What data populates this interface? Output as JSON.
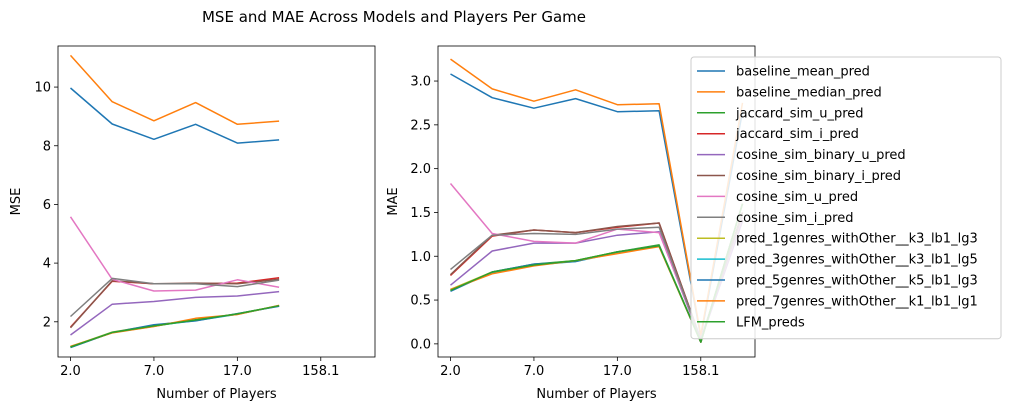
{
  "chart_data": {
    "title": "MSE and MAE Across Models and Players Per Game",
    "type": "line",
    "series_meta": [
      {
        "name": "baseline_mean_pred",
        "color": "#1f77b4"
      },
      {
        "name": "baseline_median_pred",
        "color": "#ff7f0e"
      },
      {
        "name": "jaccard_sim_u_pred",
        "color": "#2ca02c"
      },
      {
        "name": "jaccard_sim_i_pred",
        "color": "#d62728"
      },
      {
        "name": "cosine_sim_binary_u_pred",
        "color": "#9467bd"
      },
      {
        "name": "cosine_sim_binary_i_pred",
        "color": "#8c564b"
      },
      {
        "name": "cosine_sim_u_pred",
        "color": "#e377c2"
      },
      {
        "name": "cosine_sim_i_pred",
        "color": "#7f7f7f"
      },
      {
        "name": "pred_1genres_withOther__k3_lb1_lg3",
        "color": "#bcbd22"
      },
      {
        "name": "pred_3genres_withOther__k3_lb1_lg5",
        "color": "#17becf"
      },
      {
        "name": "pred_5genres_withOther__k5_lb1_lg3",
        "color": "#1f77b4"
      },
      {
        "name": "pred_7genres_withOther__k1_lb1_lg1",
        "color": "#ff7f0e"
      },
      {
        "name": "LFM_preds",
        "color": "#2ca02c"
      }
    ],
    "legend_placement": "right",
    "panels": [
      {
        "xlabel": "Number of Players",
        "ylabel": "MSE",
        "x_ticks": [
          "2.0",
          "7.0",
          "17.0",
          "158.1"
        ],
        "x_tick_positions": [
          0,
          2,
          4,
          6
        ],
        "xlim": [
          -0.3,
          7.3
        ],
        "ylim": [
          0.8,
          11.4
        ],
        "y_ticks": [
          "2",
          "4",
          "6",
          "8",
          "10"
        ],
        "y_tick_values": [
          2,
          4,
          6,
          8,
          10
        ],
        "series": [
          {
            "ref": 0,
            "x": [
              0,
              1,
              2,
              3,
              4,
              5
            ],
            "values": [
              9.97,
              8.74,
              8.22,
              8.73,
              8.09,
              8.2
            ]
          },
          {
            "ref": 1,
            "x": [
              0,
              1,
              2,
              3,
              4,
              5
            ],
            "values": [
              11.08,
              9.5,
              8.85,
              9.47,
              8.73,
              8.84
            ]
          },
          {
            "ref": 2,
            "x": [
              0,
              1,
              2,
              3,
              4,
              5
            ],
            "values": [
              1.13,
              1.63,
              1.85,
              2.07,
              2.26,
              2.55
            ]
          },
          {
            "ref": 3,
            "x": [
              0,
              1,
              2,
              3,
              4,
              5
            ],
            "values": [
              1.82,
              3.38,
              3.3,
              3.3,
              3.32,
              3.5
            ]
          },
          {
            "ref": 4,
            "x": [
              0,
              1,
              2,
              3,
              4,
              5
            ],
            "values": [
              1.55,
              2.6,
              2.69,
              2.83,
              2.88,
              3.03
            ]
          },
          {
            "ref": 5,
            "x": [
              0,
              1,
              2,
              3,
              4,
              5
            ],
            "values": [
              1.8,
              3.4,
              3.3,
              3.32,
              3.3,
              3.45
            ]
          },
          {
            "ref": 6,
            "x": [
              0,
              1,
              2,
              3,
              4,
              5
            ],
            "values": [
              5.58,
              3.45,
              3.05,
              3.08,
              3.43,
              3.18
            ]
          },
          {
            "ref": 7,
            "x": [
              0,
              1,
              2,
              3,
              4,
              5
            ],
            "values": [
              2.18,
              3.48,
              3.3,
              3.3,
              3.2,
              3.42
            ]
          },
          {
            "ref": 8,
            "x": [
              0,
              1,
              2,
              3,
              4,
              5
            ],
            "values": [
              1.15,
              1.65,
              1.88,
              2.05,
              2.27,
              2.55
            ]
          },
          {
            "ref": 9,
            "x": [
              0,
              1,
              2,
              3,
              4,
              5
            ],
            "values": [
              1.14,
              1.64,
              1.87,
              2.04,
              2.26,
              2.54
            ]
          },
          {
            "ref": 10,
            "x": [
              0,
              1,
              2,
              3,
              4,
              5
            ],
            "values": [
              1.12,
              1.63,
              1.9,
              2.03,
              2.28,
              2.53
            ]
          },
          {
            "ref": 11,
            "x": [
              0,
              1,
              2,
              3,
              4,
              5
            ],
            "values": [
              1.16,
              1.62,
              1.84,
              2.12,
              2.25,
              2.56
            ]
          },
          {
            "ref": 12,
            "x": [
              0,
              1,
              2,
              3,
              4,
              5
            ],
            "values": [
              1.14,
              1.64,
              1.86,
              2.06,
              2.27,
              2.55
            ]
          }
        ]
      },
      {
        "xlabel": "Number of Players",
        "ylabel": "MAE",
        "x_ticks": [
          "2.0",
          "7.0",
          "17.0",
          "158.1"
        ],
        "x_tick_positions": [
          0,
          2,
          4,
          6
        ],
        "xlim": [
          -0.3,
          7.3
        ],
        "ylim": [
          -0.15,
          3.4
        ],
        "y_ticks": [
          "0.0",
          "0.5",
          "1.0",
          "1.5",
          "2.0",
          "2.5",
          "3.0"
        ],
        "y_tick_values": [
          0,
          0.5,
          1,
          1.5,
          2,
          2.5,
          3
        ],
        "series": [
          {
            "ref": 0,
            "x": [
              0,
              1,
              2,
              3,
              4,
              5,
              6,
              7
            ],
            "values": [
              3.08,
              2.81,
              2.69,
              2.8,
              2.65,
              2.66,
              0.08,
              2.65
            ]
          },
          {
            "ref": 1,
            "x": [
              0,
              1,
              2,
              3,
              4,
              5,
              6,
              7
            ],
            "values": [
              3.25,
              2.91,
              2.77,
              2.9,
              2.73,
              2.74,
              0.1,
              2.75
            ]
          },
          {
            "ref": 2,
            "x": [
              0,
              1,
              2,
              3,
              4,
              5,
              6,
              7
            ],
            "values": [
              0.61,
              0.82,
              0.91,
              0.95,
              1.05,
              1.13,
              0.02,
              1.6
            ]
          },
          {
            "ref": 3,
            "x": [
              0,
              1,
              2,
              3,
              4,
              5,
              6,
              7
            ],
            "values": [
              0.78,
              1.23,
              1.3,
              1.27,
              1.33,
              1.38,
              0.05,
              1.5
            ]
          },
          {
            "ref": 4,
            "x": [
              0,
              1,
              2,
              3,
              4,
              5,
              6,
              7
            ],
            "values": [
              0.67,
              1.06,
              1.15,
              1.15,
              1.24,
              1.28,
              0.04,
              1.4
            ]
          },
          {
            "ref": 5,
            "x": [
              0,
              1,
              2,
              3,
              4,
              5,
              6,
              7
            ],
            "values": [
              0.79,
              1.24,
              1.3,
              1.27,
              1.34,
              1.38,
              0.05,
              1.5
            ]
          },
          {
            "ref": 6,
            "x": [
              0,
              1,
              2,
              3,
              4,
              5,
              6,
              7
            ],
            "values": [
              1.83,
              1.26,
              1.17,
              1.15,
              1.31,
              1.27,
              0.06,
              1.45
            ]
          },
          {
            "ref": 7,
            "x": [
              0,
              1,
              2,
              3,
              4,
              5,
              6,
              7
            ],
            "values": [
              0.85,
              1.24,
              1.26,
              1.25,
              1.31,
              1.33,
              0.05,
              1.48
            ]
          },
          {
            "ref": 8,
            "x": [
              0,
              1,
              2,
              3,
              4,
              5,
              6,
              7
            ],
            "values": [
              0.62,
              0.82,
              0.9,
              0.95,
              1.05,
              1.12,
              0.02,
              1.6
            ]
          },
          {
            "ref": 9,
            "x": [
              0,
              1,
              2,
              3,
              4,
              5,
              6,
              7
            ],
            "values": [
              0.61,
              0.81,
              0.9,
              0.94,
              1.04,
              1.12,
              0.02,
              1.6
            ]
          },
          {
            "ref": 10,
            "x": [
              0,
              1,
              2,
              3,
              4,
              5,
              6,
              7
            ],
            "values": [
              0.6,
              0.82,
              0.91,
              0.94,
              1.05,
              1.12,
              0.02,
              1.6
            ]
          },
          {
            "ref": 11,
            "x": [
              0,
              1,
              2,
              3,
              4,
              5,
              6,
              7
            ],
            "values": [
              0.62,
              0.8,
              0.89,
              0.95,
              1.03,
              1.11,
              0.02,
              1.6
            ]
          },
          {
            "ref": 12,
            "x": [
              0,
              1,
              2,
              3,
              4,
              5,
              6,
              7
            ],
            "values": [
              0.61,
              0.82,
              0.9,
              0.95,
              1.05,
              1.12,
              0.02,
              1.6
            ]
          }
        ]
      }
    ]
  }
}
